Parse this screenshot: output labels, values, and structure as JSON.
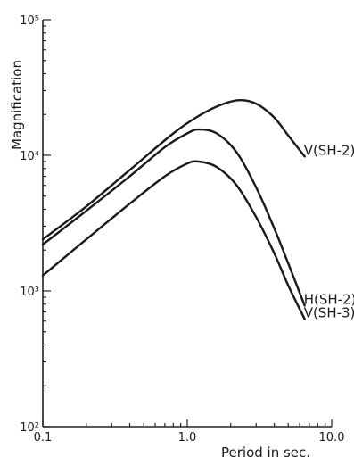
{
  "chart_data": {
    "type": "line",
    "title": "",
    "xlabel": "Period in sec.",
    "ylabel": "Magnification",
    "xscale": "log",
    "yscale": "log",
    "xlim": [
      0.1,
      10.0
    ],
    "ylim": [
      100,
      100000
    ],
    "grid": false,
    "xticks": [
      {
        "value": 0.1,
        "label": "0.1"
      },
      {
        "value": 1.0,
        "label": "1.0"
      },
      {
        "value": 10.0,
        "label": "10.0"
      }
    ],
    "yticks": [
      {
        "value": 100,
        "label": "10²"
      },
      {
        "value": 1000,
        "label": "10³"
      },
      {
        "value": 10000,
        "label": "10⁴"
      },
      {
        "value": 100000,
        "label": "10⁵"
      }
    ],
    "series": [
      {
        "name": "V(SH-2)",
        "x": [
          0.1,
          0.2,
          0.4,
          0.8,
          1.2,
          1.7,
          2.3,
          3.0,
          4.0,
          5.0,
          6.5
        ],
        "values": [
          2400,
          4200,
          7800,
          14500,
          19500,
          23500,
          25500,
          24000,
          19000,
          14000,
          9800
        ]
      },
      {
        "name": "H(SH-2)",
        "x": [
          0.1,
          0.2,
          0.4,
          0.7,
          1.0,
          1.2,
          1.6,
          2.2,
          3.0,
          4.0,
          5.0,
          6.5
        ],
        "values": [
          2200,
          3900,
          7000,
          11500,
          14500,
          15500,
          14500,
          10500,
          5800,
          2900,
          1600,
          780
        ]
      },
      {
        "name": "V(SH-3)",
        "x": [
          0.1,
          0.2,
          0.4,
          0.7,
          1.0,
          1.2,
          1.6,
          2.2,
          3.0,
          4.0,
          5.0,
          6.5
        ],
        "values": [
          1300,
          2400,
          4400,
          7000,
          8700,
          9000,
          8200,
          6000,
          3500,
          1900,
          1100,
          620
        ]
      }
    ]
  }
}
